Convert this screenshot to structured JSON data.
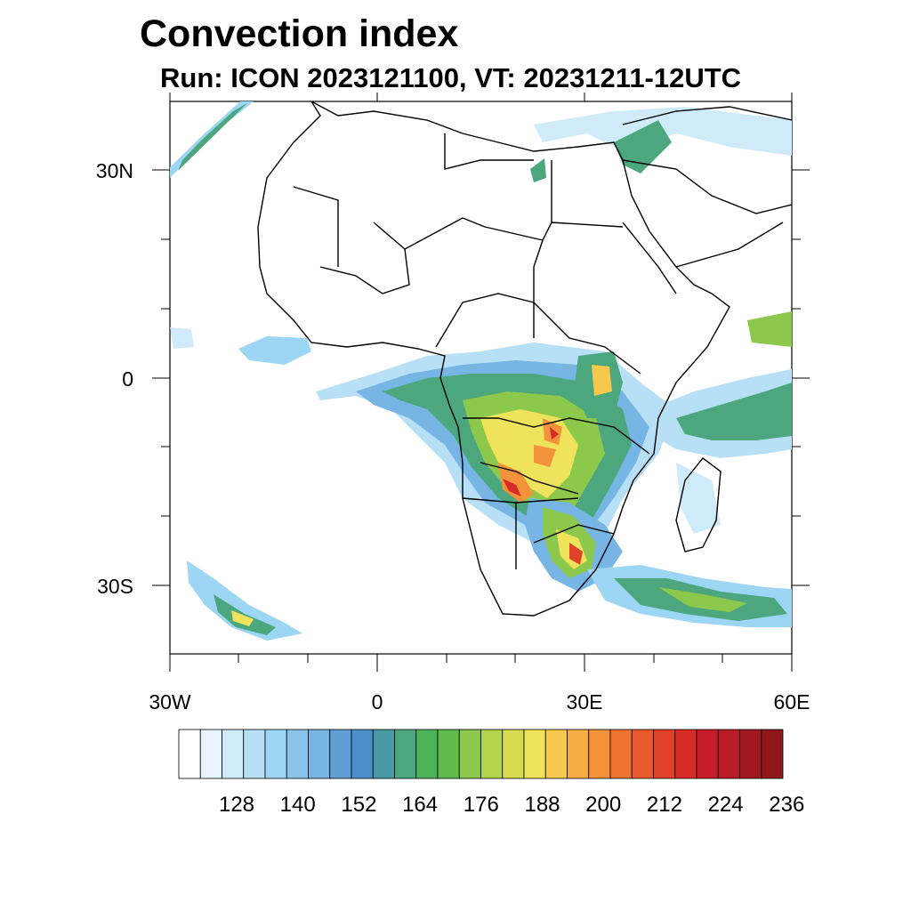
{
  "title": "Convection index",
  "subtitle": "Run: ICON 2023121100,  VT: 20231211-12UTC",
  "axes": {
    "lat_labels": [
      "30N",
      "0",
      "30S"
    ],
    "lon_labels": [
      "30W",
      "0",
      "30E",
      "60E"
    ],
    "lon_range": [
      -30,
      60
    ],
    "lat_range": [
      -40,
      40
    ]
  },
  "colorbar": {
    "labels": [
      "128",
      "140",
      "152",
      "164",
      "176",
      "188",
      "200",
      "212",
      "224",
      "236"
    ],
    "colors": [
      "#ffffff",
      "#e8f5fc",
      "#cfeaf9",
      "#b7e0f7",
      "#9dd5f4",
      "#8ac6ec",
      "#77b6e4",
      "#5f9fd6",
      "#4c90c9",
      "#4a9aa6",
      "#4ca77e",
      "#4db35a",
      "#5ebd4d",
      "#8cc84c",
      "#b3d24d",
      "#d6dc52",
      "#f0e35c",
      "#f6c94e",
      "#f5ad44",
      "#f4923c",
      "#ef7432",
      "#e8592c",
      "#e04229",
      "#d72b27",
      "#c71f29",
      "#b81a27",
      "#a21822",
      "#8e1719"
    ]
  }
}
